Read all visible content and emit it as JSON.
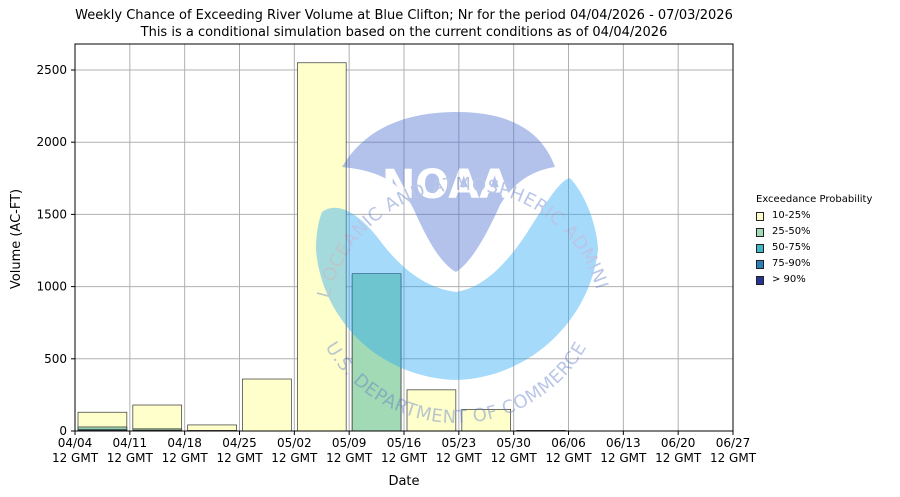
{
  "chart_data": {
    "type": "bar",
    "title": "Weekly Chance of Exceeding River Volume at Blue Clifton; Nr for the period 04/04/2026 - 07/03/2026",
    "subtitle": "This is a conditional simulation based on the current conditions as of 04/04/2026",
    "xlabel": "Date",
    "ylabel": "Volume (AC-FT)",
    "ylim": [
      0,
      2680
    ],
    "y_ticks": [
      0,
      500,
      1000,
      1500,
      2000,
      2500
    ],
    "x_ticks": [
      [
        "04/04",
        "12 GMT"
      ],
      [
        "04/11",
        "12 GMT"
      ],
      [
        "04/18",
        "12 GMT"
      ],
      [
        "04/25",
        "12 GMT"
      ],
      [
        "05/02",
        "12 GMT"
      ],
      [
        "05/09",
        "12 GMT"
      ],
      [
        "05/16",
        "12 GMT"
      ],
      [
        "05/23",
        "12 GMT"
      ],
      [
        "05/30",
        "12 GMT"
      ],
      [
        "06/06",
        "12 GMT"
      ],
      [
        "06/13",
        "12 GMT"
      ],
      [
        "06/20",
        "12 GMT"
      ],
      [
        "06/27",
        "12 GMT"
      ]
    ],
    "grid": true,
    "legend_position": "right",
    "legend_title": "Exceedance Probability",
    "series": [
      {
        "name": "10-25%",
        "color": "#ffffcc",
        "values": [
          130,
          180,
          42,
          360,
          2550,
          1080,
          285,
          150,
          4,
          0,
          0,
          0
        ]
      },
      {
        "name": "25-50%",
        "color": "#a1dab4",
        "values": [
          28,
          15,
          4,
          0,
          0,
          1090,
          0,
          0,
          2,
          0,
          0,
          0
        ]
      },
      {
        "name": "50-75%",
        "color": "#41b6c4",
        "values": [
          12,
          6,
          0,
          0,
          0,
          0,
          0,
          0,
          1,
          0,
          0,
          0
        ]
      },
      {
        "name": "75-90%",
        "color": "#2c7fb8",
        "values": [
          5,
          2,
          0,
          0,
          0,
          0,
          0,
          0,
          0,
          0,
          0,
          0
        ]
      },
      {
        "name": "> 90%",
        "color": "#253494",
        "values": [
          2,
          1,
          0,
          0,
          0,
          0,
          0,
          0,
          0,
          0,
          0,
          0
        ]
      }
    ],
    "watermark": {
      "outer_text_top": "NATIONAL OCEANIC AND ATMOSPHERIC ADMINISTRATION",
      "outer_text_bottom": "U.S. DEPARTMENT OF COMMERCE",
      "logo_text": "NOAA"
    }
  }
}
